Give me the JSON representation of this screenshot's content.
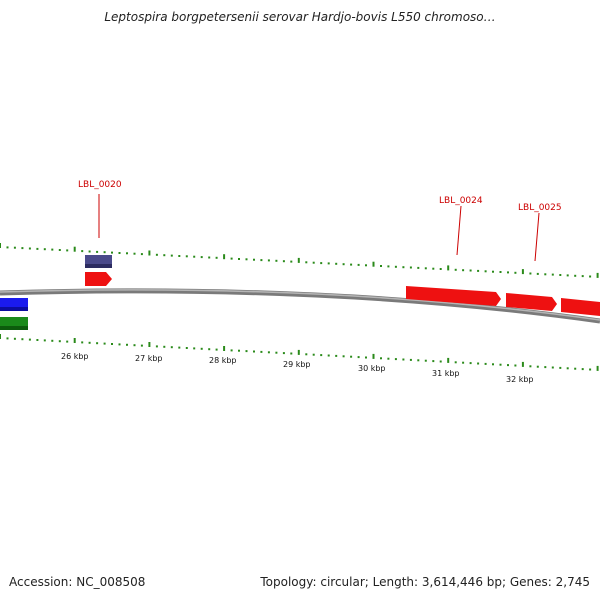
{
  "title": "Leptospira borgpetersenii serovar Hardjo-bovis L550 chromoso…",
  "footer": {
    "accession": "Accession: NC_008508",
    "summary": "Topology: circular; Length: 3,614,446 bp; Genes: 2,745"
  },
  "map": {
    "kbp_labels": [
      "26 kbp",
      "27 kbp",
      "28 kbp",
      "29 kbp",
      "30 kbp",
      "31 kbp",
      "32 kbp"
    ],
    "gene_labels": [
      "LBL_0020",
      "LBL_0024",
      "LBL_0025"
    ],
    "colors": {
      "backbone": "#8a8a8a",
      "tick": "#2a8a1a",
      "gene_forward": "#ee1111",
      "gene_label": "#cc0000",
      "feature_purple": "#4a4a8a",
      "feature_blue": "#1a1aee",
      "feature_green": "#1a8a1a"
    }
  }
}
